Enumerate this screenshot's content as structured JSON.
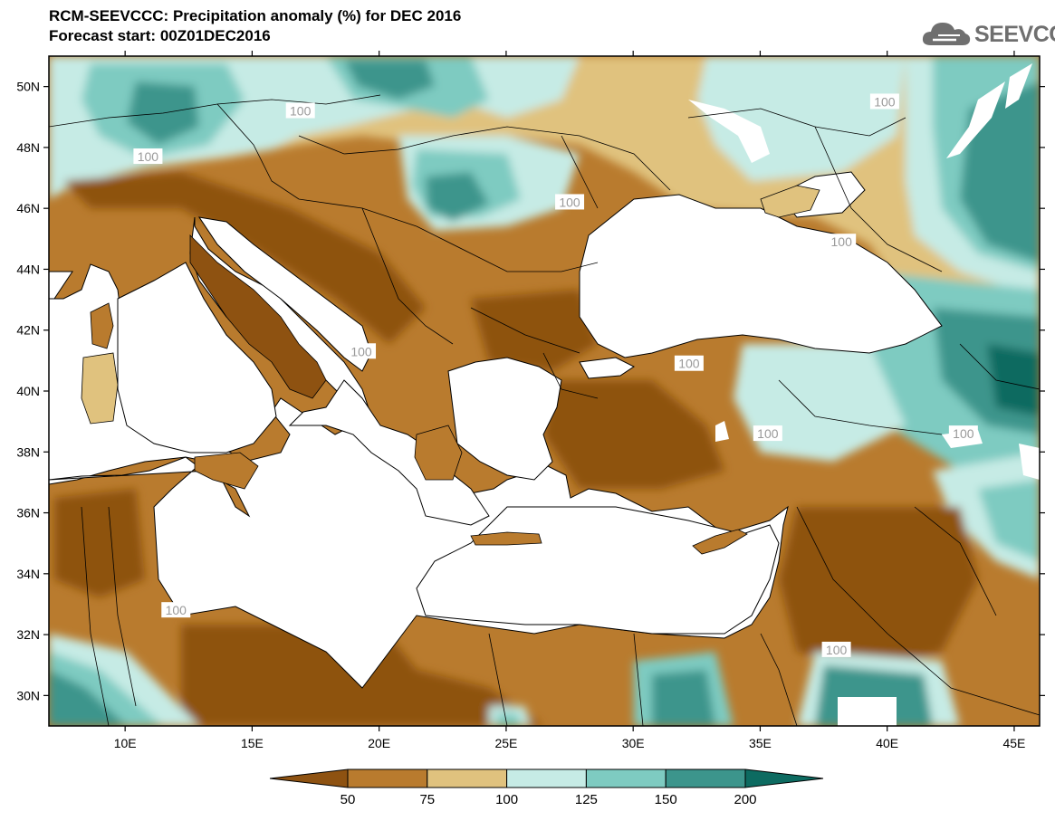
{
  "header": {
    "title_line1": "RCM-SEEVCCC: Precipitation anomaly (%) for DEC 2016",
    "title_line2": "Forecast start: 00Z01DEC2016"
  },
  "logo": {
    "text": "SEEVCCC",
    "icon": "cloud-icon"
  },
  "map": {
    "lon_range": [
      7,
      46
    ],
    "lat_range": [
      29,
      51
    ],
    "lat_ticks": [
      "50N",
      "48N",
      "46N",
      "44N",
      "42N",
      "40N",
      "38N",
      "36N",
      "34N",
      "32N",
      "30N"
    ],
    "lat_values": [
      50,
      48,
      46,
      44,
      42,
      40,
      38,
      36,
      34,
      32,
      30
    ],
    "lon_ticks": [
      "10E",
      "15E",
      "20E",
      "25E",
      "30E",
      "35E",
      "40E",
      "45E"
    ],
    "lon_values": [
      10,
      15,
      20,
      25,
      30,
      35,
      40,
      45
    ],
    "contour_labels": [
      {
        "text": "100",
        "lon": 16.9,
        "lat": 49.2
      },
      {
        "text": "100",
        "lon": 10.9,
        "lat": 47.7
      },
      {
        "text": "100",
        "lon": 27.5,
        "lat": 46.2
      },
      {
        "text": "100",
        "lon": 39.9,
        "lat": 49.5
      },
      {
        "text": "100",
        "lon": 38.2,
        "lat": 44.9
      },
      {
        "text": "100",
        "lon": 19.3,
        "lat": 41.3
      },
      {
        "text": "100",
        "lon": 32.2,
        "lat": 40.9
      },
      {
        "text": "100",
        "lon": 35.3,
        "lat": 38.6
      },
      {
        "text": "100",
        "lon": 43.0,
        "lat": 38.6
      },
      {
        "text": "100",
        "lon": 12.0,
        "lat": 32.8
      },
      {
        "text": "100",
        "lon": 38.0,
        "lat": 31.5
      }
    ]
  },
  "colorbar": {
    "labels": [
      "50",
      "75",
      "100",
      "125",
      "150",
      "200"
    ],
    "colors": [
      "#8e5211",
      "#b97b2e",
      "#e0c27e",
      "#c6ebe5",
      "#7ecbc1",
      "#3c958c",
      "#0d6b61"
    ]
  },
  "palette": {
    "very_dry": "#8e5211",
    "dry": "#b97b2e",
    "slightly_dry": "#e0c27e",
    "slightly_wet": "#c6ebe5",
    "wet": "#7ecbc1",
    "very_wet": "#3c958c",
    "extreme_wet": "#0d6b61",
    "sea": "#ffffff"
  }
}
